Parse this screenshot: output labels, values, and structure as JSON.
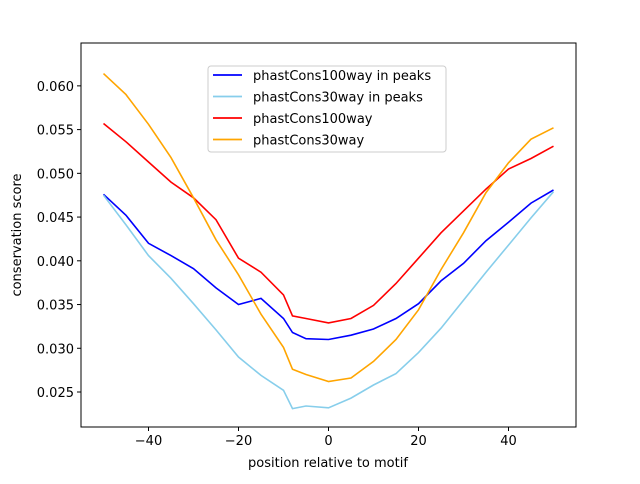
{
  "chart_data": {
    "type": "line",
    "title": "",
    "xlabel": "position relative to motif",
    "ylabel": "conservation score",
    "xlim": [
      -55,
      55
    ],
    "ylim": [
      0.021,
      0.0649
    ],
    "xticks": [
      -40,
      -20,
      0,
      20,
      40
    ],
    "xtick_labels": [
      "−40",
      "−20",
      "0",
      "20",
      "40"
    ],
    "yticks": [
      0.025,
      0.03,
      0.035,
      0.04,
      0.045,
      0.05,
      0.055,
      0.06
    ],
    "ytick_labels": [
      "0.025",
      "0.030",
      "0.035",
      "0.040",
      "0.045",
      "0.050",
      "0.055",
      "0.060"
    ],
    "grid": false,
    "legend_position": "upper-center",
    "x": [
      -50,
      -45,
      -40,
      -35,
      -30,
      -25,
      -20,
      -15,
      -10,
      -8,
      -5,
      0,
      5,
      10,
      15,
      20,
      25,
      30,
      35,
      40,
      45,
      50
    ],
    "series": [
      {
        "name": "phastCons100way in peaks",
        "color": "#0000ff",
        "values": [
          0.0476,
          0.0452,
          0.042,
          0.0406,
          0.0391,
          0.0369,
          0.035,
          0.0357,
          0.0334,
          0.0318,
          0.0311,
          0.031,
          0.0315,
          0.0322,
          0.0334,
          0.0351,
          0.0377,
          0.0397,
          0.0423,
          0.0444,
          0.0466,
          0.0481
        ]
      },
      {
        "name": "phastCons30way in peaks",
        "color": "#87ceeb",
        "values": [
          0.0475,
          0.0441,
          0.0406,
          0.038,
          0.0351,
          0.0321,
          0.029,
          0.0269,
          0.0252,
          0.0231,
          0.0234,
          0.0232,
          0.0243,
          0.0258,
          0.0271,
          0.0295,
          0.0323,
          0.0355,
          0.0387,
          0.0418,
          0.0449,
          0.0479
        ]
      },
      {
        "name": "phastCons100way",
        "color": "#ff0000",
        "values": [
          0.0557,
          0.0536,
          0.0513,
          0.049,
          0.0472,
          0.0447,
          0.0403,
          0.0387,
          0.0361,
          0.0337,
          0.0334,
          0.0329,
          0.0334,
          0.0349,
          0.0374,
          0.0403,
          0.0432,
          0.0457,
          0.0482,
          0.0505,
          0.0517,
          0.0531
        ]
      },
      {
        "name": "phastCons30way",
        "color": "#ffa500",
        "values": [
          0.0614,
          0.059,
          0.0556,
          0.0518,
          0.0472,
          0.0424,
          0.0384,
          0.0339,
          0.0301,
          0.0276,
          0.027,
          0.0262,
          0.0266,
          0.0285,
          0.031,
          0.0344,
          0.039,
          0.0432,
          0.0478,
          0.0512,
          0.0539,
          0.0552
        ]
      }
    ]
  }
}
